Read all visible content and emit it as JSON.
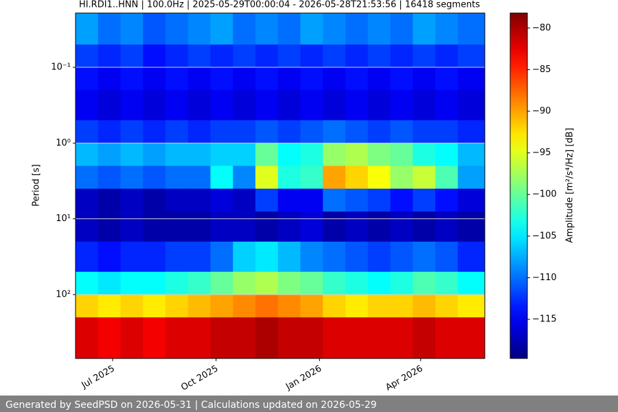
{
  "chart_data": {
    "type": "spectrogram",
    "title": "HI.RDI1..HNN | 100.0Hz | 2025-05-29T00:00:04 - 2026-05-28T21:53:56 | 16418 segments",
    "ylabel": "Period [s]",
    "colorbar_label": "Amplitude [m²/s⁴/Hz] [dB]",
    "footer": "Generated by SeedPSD on 2026-05-31 | Calculations updated on 2026-05-29",
    "colormap": "jet",
    "ylog": true,
    "y_inverted": true,
    "grid": true,
    "xlim": [
      "2025-05-29",
      "2026-05-28"
    ],
    "xticks": [
      {
        "value": "2025-07-01",
        "label": "Jul 2025"
      },
      {
        "value": "2025-10-01",
        "label": "Oct 2025"
      },
      {
        "value": "2026-01-01",
        "label": "Jan 2026"
      },
      {
        "value": "2026-04-01",
        "label": "Apr 2026"
      }
    ],
    "ylim": [
      0.0192,
      697
    ],
    "yticks": [
      {
        "value": 0.1,
        "label": "10⁻¹"
      },
      {
        "value": 1,
        "label": "10⁰"
      },
      {
        "value": 10,
        "label": "10¹"
      },
      {
        "value": 100,
        "label": "10²"
      }
    ],
    "clim": [
      -119.7,
      -78.2
    ],
    "cticks": [
      {
        "value": -80,
        "label": "−80"
      },
      {
        "value": -85,
        "label": "−85"
      },
      {
        "value": -90,
        "label": "−90"
      },
      {
        "value": -95,
        "label": "−95"
      },
      {
        "value": -100,
        "label": "−100"
      },
      {
        "value": -105,
        "label": "−105"
      },
      {
        "value": -110,
        "label": "−110"
      },
      {
        "value": -115,
        "label": "−115"
      }
    ],
    "x_bins": [
      "2025-05-29",
      "2025-06-18",
      "2025-07-08",
      "2025-07-28",
      "2025-08-17",
      "2025-09-06",
      "2025-09-26",
      "2025-10-16",
      "2025-11-05",
      "2025-11-25",
      "2025-12-15",
      "2026-01-04",
      "2026-01-24",
      "2026-02-13",
      "2026-03-05",
      "2026-03-25",
      "2026-04-14",
      "2026-05-04",
      "2026-05-28"
    ],
    "y_bins": [
      0.0192,
      0.05,
      0.1,
      0.2,
      0.5,
      1,
      2,
      4,
      8,
      20,
      50,
      100,
      200,
      697
    ],
    "values": [
      [
        -108,
        -110,
        -109,
        -111,
        -110,
        -109,
        -108,
        -110,
        -109,
        -110,
        -108,
        -109,
        -110,
        -109,
        -110,
        -108,
        -109,
        -110
      ],
      [
        -112,
        -113,
        -112,
        -114,
        -113,
        -112,
        -113,
        -112,
        -113,
        -112,
        -113,
        -112,
        -113,
        -112,
        -113,
        -112,
        -113,
        -112
      ],
      [
        -114,
        -115,
        -114,
        -115,
        -114,
        -115,
        -114,
        -115,
        -114,
        -115,
        -114,
        -115,
        -114,
        -115,
        -114,
        -115,
        -114,
        -115
      ],
      [
        -115,
        -116,
        -115,
        -116,
        -115,
        -116,
        -115,
        -116,
        -115,
        -116,
        -115,
        -116,
        -115,
        -116,
        -115,
        -116,
        -115,
        -116
      ],
      [
        -112,
        -113,
        -112,
        -113,
        -112,
        -113,
        -112,
        -112,
        -111,
        -112,
        -111,
        -110,
        -111,
        -112,
        -111,
        -112,
        -112,
        -113
      ],
      [
        -107,
        -108,
        -107,
        -108,
        -107,
        -107,
        -106,
        -106,
        -100,
        -104,
        -103,
        -98,
        -97,
        -99,
        -100,
        -103,
        -104,
        -107
      ],
      [
        -110,
        -111,
        -110,
        -111,
        -110,
        -110,
        -104,
        -109,
        -95,
        -103,
        -102,
        -90,
        -92,
        -94,
        -98,
        -96,
        -101,
        -108
      ],
      [
        -117,
        -118,
        -117,
        -118,
        -117,
        -117,
        -116,
        -117,
        -112,
        -115,
        -115,
        -110,
        -111,
        -112,
        -114,
        -112,
        -114,
        -116
      ],
      [
        -117,
        -118,
        -117,
        -118,
        -118,
        -118,
        -117,
        -117,
        -118,
        -117,
        -116,
        -118,
        -117,
        -118,
        -117,
        -118,
        -117,
        -118
      ],
      [
        -113,
        -114,
        -113,
        -113,
        -112,
        -112,
        -110,
        -106,
        -105,
        -107,
        -109,
        -110,
        -111,
        -112,
        -111,
        -110,
        -111,
        -113
      ],
      [
        -104,
        -105,
        -104,
        -104,
        -103,
        -102,
        -100,
        -98,
        -97,
        -99,
        -100,
        -102,
        -103,
        -104,
        -103,
        -101,
        -102,
        -104
      ],
      [
        -92,
        -93,
        -92,
        -93,
        -92,
        -91,
        -90,
        -89,
        -88,
        -89,
        -90,
        -92,
        -93,
        -92,
        -92,
        -91,
        -92,
        -93
      ],
      [
        -82,
        -83,
        -82,
        -83,
        -82,
        -82,
        -81,
        -81,
        -80,
        -81,
        -81,
        -82,
        -82,
        -82,
        -82,
        -81,
        -82,
        -82
      ]
    ]
  }
}
